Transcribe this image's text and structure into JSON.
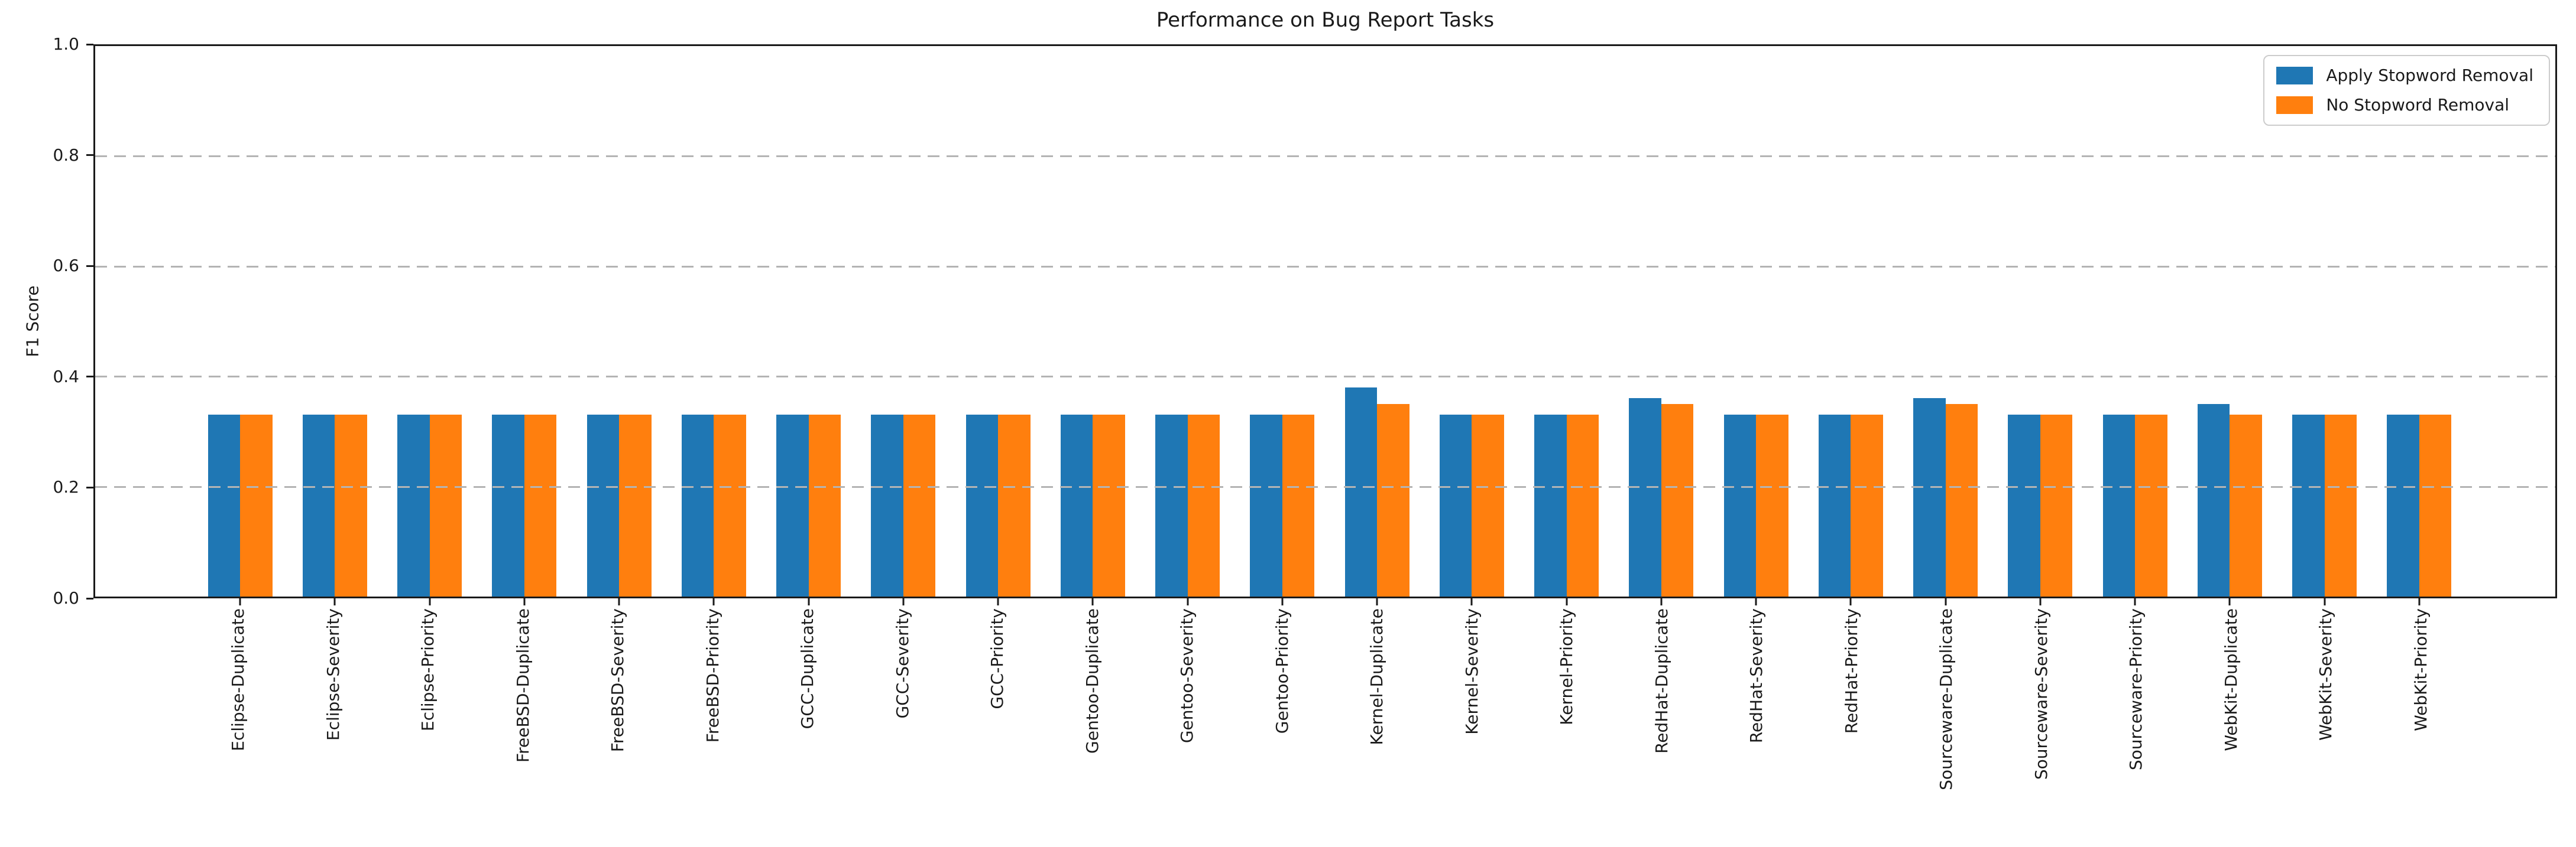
{
  "chart_data": {
    "type": "bar",
    "title": "Performance on Bug Report Tasks",
    "xlabel": "",
    "ylabel": "F1 Score",
    "ylim": [
      0.0,
      1.0
    ],
    "yticks": [
      0.0,
      0.2,
      0.4,
      0.6,
      0.8,
      1.0
    ],
    "grid": "horizontal dashed gridlines at y ticks, drawn above bars",
    "legend_position": "upper right",
    "bar_colors": {
      "apply": "#1f77b4",
      "no": "#ff7f0e"
    },
    "categories": [
      "Eclipse-Duplicate",
      "Eclipse-Severity",
      "Eclipse-Priority",
      "FreeBSD-Duplicate",
      "FreeBSD-Severity",
      "FreeBSD-Priority",
      "GCC-Duplicate",
      "GCC-Severity",
      "GCC-Priority",
      "Gentoo-Duplicate",
      "Gentoo-Severity",
      "Gentoo-Priority",
      "Kernel-Duplicate",
      "Kernel-Severity",
      "Kernel-Priority",
      "RedHat-Duplicate",
      "RedHat-Severity",
      "RedHat-Priority",
      "Sourceware-Duplicate",
      "Sourceware-Severity",
      "Sourceware-Priority",
      "WebKit-Duplicate",
      "WebKit-Severity",
      "WebKit-Priority"
    ],
    "series": [
      {
        "name": "Apply Stopword Removal",
        "color": "#1f77b4",
        "values": [
          0.33,
          0.33,
          0.33,
          0.33,
          0.33,
          0.33,
          0.33,
          0.33,
          0.33,
          0.33,
          0.33,
          0.33,
          0.38,
          0.33,
          0.33,
          0.36,
          0.33,
          0.33,
          0.36,
          0.33,
          0.33,
          0.35,
          0.33,
          0.33
        ]
      },
      {
        "name": "No Stopword Removal",
        "color": "#ff7f0e",
        "values": [
          0.33,
          0.33,
          0.33,
          0.33,
          0.33,
          0.33,
          0.33,
          0.33,
          0.33,
          0.33,
          0.33,
          0.33,
          0.35,
          0.33,
          0.33,
          0.35,
          0.33,
          0.33,
          0.35,
          0.33,
          0.33,
          0.33,
          0.33,
          0.33
        ]
      }
    ]
  }
}
